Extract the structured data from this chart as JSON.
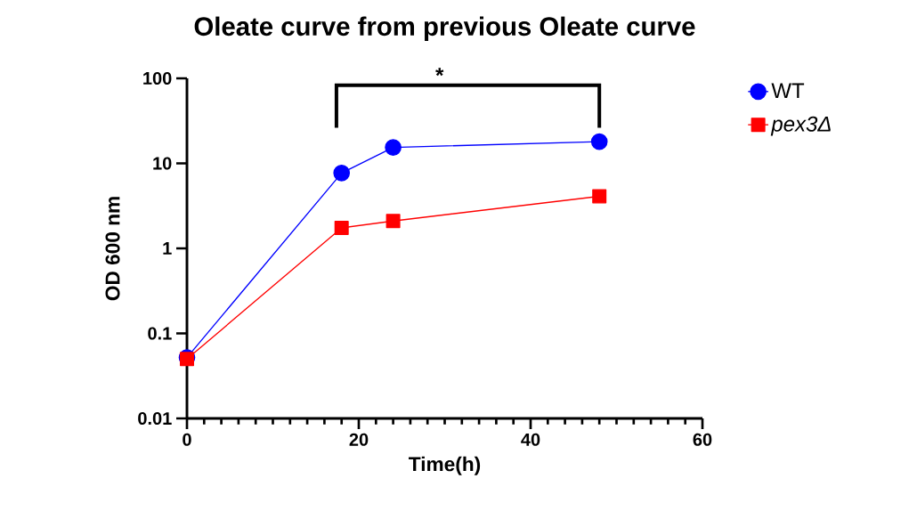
{
  "chart_data": {
    "type": "line",
    "title": "Oleate curve from previous Oleate curve",
    "xlabel": "Time(h)",
    "ylabel": "OD 600 nm",
    "x": [
      0,
      18,
      24,
      48
    ],
    "series": [
      {
        "name": "WT",
        "color": "#0000ff",
        "marker": "circle",
        "values": [
          0.052,
          7.7,
          15.4,
          18
        ]
      },
      {
        "name": "pex3Δ",
        "color": "#ff0000",
        "marker": "square",
        "values": [
          0.05,
          1.74,
          2.1,
          4.1
        ]
      }
    ],
    "xlim": [
      0,
      60
    ],
    "xticks": [
      0,
      20,
      40,
      60
    ],
    "ylim": [
      0.01,
      100
    ],
    "yticks": [
      0.01,
      0.1,
      1,
      10,
      100
    ],
    "log": "y",
    "grid": false,
    "legend": "top right",
    "annotations": [
      "*"
    ]
  }
}
